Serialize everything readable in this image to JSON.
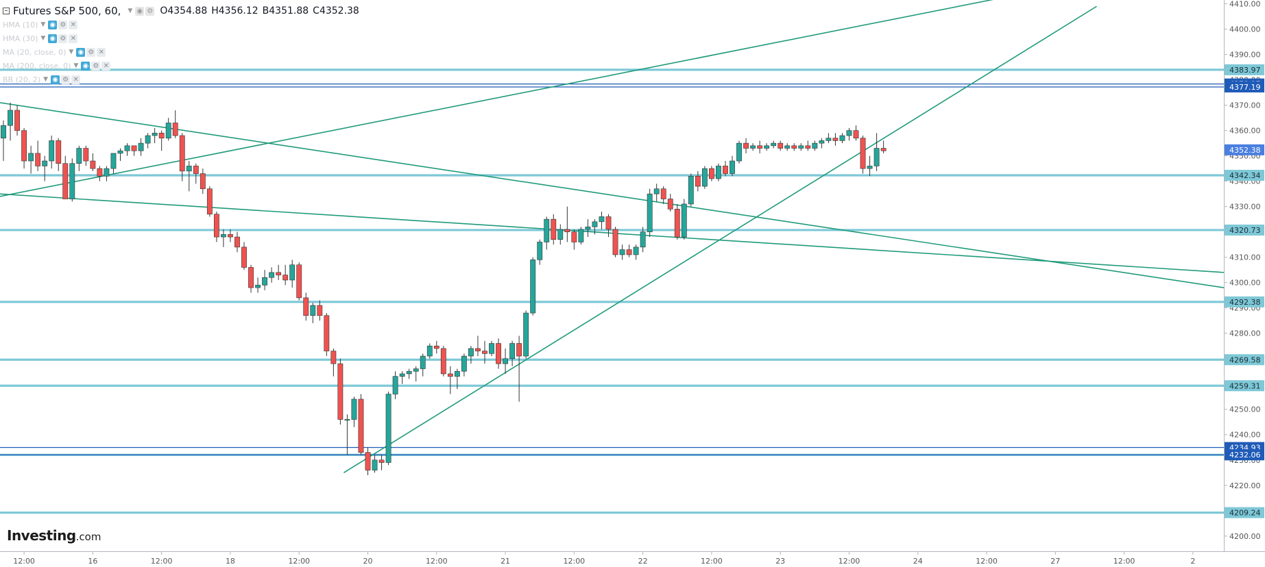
{
  "legend": {
    "title": "Futures S&P 500, 60,",
    "open": "O4354.88",
    "high": "H4356.12",
    "low": "B4351.88",
    "close": "C4352.38",
    "indicators": [
      {
        "label": "HMA (10)"
      },
      {
        "label": "HMA (30)"
      },
      {
        "label": "MA (20, close, 0)"
      },
      {
        "label": "MA (200, close, 0)"
      },
      {
        "label": "BB (20, 2)"
      }
    ]
  },
  "logo": {
    "brand": "Investing",
    "tld": ".com"
  },
  "colors": {
    "up": "#26a69a",
    "down": "#ef5350",
    "level_line": "#7ec8d7",
    "trend_line": "#1e9a7a",
    "dark_level": "#1f5bb8",
    "axis_text": "#555555",
    "current_price_bg": "#4a7fe0"
  },
  "chart_data": {
    "type": "candlestick",
    "title": "Futures S&P 500, 60,",
    "x_ticks": [
      "12:00",
      "16",
      "12:00",
      "18",
      "12:00",
      "20",
      "12:00",
      "21",
      "12:00",
      "22",
      "12:00",
      "23",
      "12:00",
      "24",
      "12:00",
      "27",
      "12:00",
      "2"
    ],
    "y_ticks": [
      4200,
      4210,
      4220,
      4230,
      4240,
      4250,
      4260,
      4270,
      4280,
      4290,
      4300,
      4310,
      4320,
      4330,
      4340,
      4350,
      4360,
      4370,
      4380,
      4390,
      4400,
      4410
    ],
    "ylim": [
      4194,
      4411.5
    ],
    "n_slots": 178,
    "last_price": 4352.38,
    "horizontal_levels": [
      {
        "price": 4383.97,
        "label": "4383.97"
      },
      {
        "price": 4342.34,
        "label": "4342.34"
      },
      {
        "price": 4320.73,
        "label": "4320.73"
      },
      {
        "price": 4292.38,
        "label": "4292.38"
      },
      {
        "price": 4269.58,
        "label": "4269.58"
      },
      {
        "price": 4259.31,
        "label": "4259.31"
      },
      {
        "price": 4232.02,
        "label": "4232.02"
      },
      {
        "price": 4209.24,
        "label": "4209.24"
      }
    ],
    "dark_levels": [
      {
        "price": 4378.37,
        "label": "4378.37"
      },
      {
        "price": 4377.19,
        "label": "4377.19"
      },
      {
        "price": 4234.93,
        "label": "4234.93"
      },
      {
        "price": 4232.06,
        "label": "4232.06"
      }
    ],
    "current_price_label": "4352.38",
    "trend_lines": [
      {
        "from": [
          -0.5,
          4334
        ],
        "to": [
          144.5,
          4412
        ]
      },
      {
        "from": [
          -0.5,
          4371
        ],
        "to": [
          177.5,
          4298
        ]
      },
      {
        "from": [
          -0.5,
          4335
        ],
        "to": [
          177.5,
          4304
        ]
      },
      {
        "from": [
          49.5,
          4225
        ],
        "to": [
          159,
          4409
        ]
      }
    ],
    "candles": [
      [
        0,
        4357,
        4364,
        4348,
        4362
      ],
      [
        1,
        4362,
        4371,
        4356,
        4368
      ],
      [
        2,
        4368,
        4370,
        4358,
        4360
      ],
      [
        3,
        4360,
        4361,
        4345,
        4348
      ],
      [
        4,
        4348,
        4354,
        4343,
        4351
      ],
      [
        5,
        4351,
        4356,
        4344,
        4346
      ],
      [
        6,
        4346,
        4350,
        4340,
        4348
      ],
      [
        7,
        4348,
        4358,
        4345,
        4356
      ],
      [
        8,
        4356,
        4357,
        4344,
        4347
      ],
      [
        9,
        4347,
        4350,
        4333,
        4333
      ],
      [
        10,
        4333,
        4349,
        4332,
        4347
      ],
      [
        11,
        4347,
        4354,
        4344,
        4353
      ],
      [
        12,
        4353,
        4354,
        4346,
        4348
      ],
      [
        13,
        4348,
        4351,
        4344,
        4345
      ],
      [
        14,
        4345,
        4346,
        4340,
        4342
      ],
      [
        15,
        4342,
        4346,
        4340,
        4345
      ],
      [
        16,
        4345,
        4351,
        4343,
        4351
      ],
      [
        17,
        4351,
        4353,
        4348,
        4352
      ],
      [
        18,
        4352,
        4355,
        4350,
        4354
      ],
      [
        19,
        4354,
        4354,
        4350,
        4352
      ],
      [
        20,
        4352,
        4357,
        4350,
        4355
      ],
      [
        21,
        4355,
        4359,
        4353,
        4358
      ],
      [
        22,
        4358,
        4361,
        4355,
        4359
      ],
      [
        23,
        4359,
        4360,
        4352,
        4357
      ],
      [
        24,
        4357,
        4365,
        4356,
        4363
      ],
      [
        25,
        4363,
        4368,
        4357,
        4358
      ],
      [
        26,
        4358,
        4359,
        4340,
        4344
      ],
      [
        27,
        4344,
        4348,
        4336,
        4346
      ],
      [
        28,
        4346,
        4347,
        4339,
        4343
      ],
      [
        29,
        4343,
        4345,
        4335,
        4337
      ],
      [
        30,
        4337,
        4338,
        4326,
        4327
      ],
      [
        31,
        4327,
        4328,
        4316,
        4318
      ],
      [
        32,
        4318,
        4321,
        4314,
        4319
      ],
      [
        33,
        4319,
        4321,
        4316,
        4318
      ],
      [
        34,
        4318,
        4320,
        4312,
        4314
      ],
      [
        35,
        4314,
        4316,
        4305,
        4306
      ],
      [
        36,
        4306,
        4307,
        4296,
        4298
      ],
      [
        37,
        4298,
        4302,
        4296,
        4299
      ],
      [
        38,
        4299,
        4305,
        4297,
        4302
      ],
      [
        39,
        4302,
        4306,
        4300,
        4304
      ],
      [
        40,
        4304,
        4307,
        4301,
        4303
      ],
      [
        41,
        4303,
        4307,
        4299,
        4301
      ],
      [
        42,
        4301,
        4309,
        4298,
        4307
      ],
      [
        43,
        4307,
        4308,
        4293,
        4294
      ],
      [
        44,
        4294,
        4296,
        4285,
        4287
      ],
      [
        45,
        4287,
        4292,
        4284,
        4291
      ],
      [
        46,
        4291,
        4293,
        4285,
        4287
      ],
      [
        47,
        4287,
        4288,
        4271,
        4273
      ],
      [
        48,
        4273,
        4274,
        4263,
        4268
      ],
      [
        49,
        4268,
        4270,
        4244,
        4246
      ],
      [
        50,
        4246,
        4248,
        4232,
        4246
      ],
      [
        51,
        4246,
        4255,
        4243,
        4254
      ],
      [
        52,
        4254,
        4256,
        4232,
        4233
      ],
      [
        53,
        4233,
        4235,
        4224,
        4226
      ],
      [
        54,
        4226,
        4232,
        4225,
        4230
      ],
      [
        55,
        4230,
        4232,
        4226,
        4229
      ],
      [
        56,
        4229,
        4257,
        4228,
        4256
      ],
      [
        57,
        4256,
        4265,
        4254,
        4263
      ],
      [
        58,
        4263,
        4265,
        4260,
        4264
      ],
      [
        59,
        4264,
        4266,
        4262,
        4265
      ],
      [
        60,
        4265,
        4267,
        4261,
        4266
      ],
      [
        61,
        4266,
        4272,
        4263,
        4271
      ],
      [
        62,
        4271,
        4276,
        4270,
        4275
      ],
      [
        63,
        4275,
        4277,
        4272,
        4274
      ],
      [
        64,
        4274,
        4275,
        4263,
        4264
      ],
      [
        65,
        4264,
        4267,
        4256,
        4263
      ],
      [
        66,
        4263,
        4266,
        4258,
        4265
      ],
      [
        67,
        4265,
        4272,
        4263,
        4271
      ],
      [
        68,
        4271,
        4275,
        4268,
        4274
      ],
      [
        69,
        4274,
        4279,
        4271,
        4273
      ],
      [
        70,
        4273,
        4277,
        4268,
        4272
      ],
      [
        71,
        4272,
        4277,
        4271,
        4276
      ],
      [
        72,
        4276,
        4278,
        4266,
        4268
      ],
      [
        73,
        4268,
        4274,
        4264,
        4270
      ],
      [
        74,
        4270,
        4277,
        4267,
        4276
      ],
      [
        75,
        4276,
        4279,
        4253,
        4271
      ],
      [
        76,
        4271,
        4289,
        4270,
        4288
      ],
      [
        77,
        4288,
        4310,
        4287,
        4309
      ],
      [
        78,
        4309,
        4317,
        4307,
        4316
      ],
      [
        79,
        4316,
        4326,
        4313,
        4325
      ],
      [
        80,
        4325,
        4327,
        4315,
        4317
      ],
      [
        81,
        4317,
        4323,
        4315,
        4321
      ],
      [
        82,
        4321,
        4330,
        4316,
        4320
      ],
      [
        83,
        4320,
        4321,
        4313,
        4316
      ],
      [
        84,
        4316,
        4322,
        4315,
        4321
      ],
      [
        85,
        4321,
        4325,
        4318,
        4322
      ],
      [
        86,
        4322,
        4325,
        4319,
        4324
      ],
      [
        87,
        4324,
        4328,
        4321,
        4326
      ],
      [
        88,
        4326,
        4327,
        4318,
        4321
      ],
      [
        89,
        4321,
        4322,
        4310,
        4311
      ],
      [
        90,
        4311,
        4315,
        4309,
        4313
      ],
      [
        91,
        4313,
        4315,
        4310,
        4311
      ],
      [
        92,
        4311,
        4315,
        4309,
        4314
      ],
      [
        93,
        4314,
        4322,
        4312,
        4320
      ],
      [
        94,
        4320,
        4337,
        4318,
        4335
      ],
      [
        95,
        4335,
        4339,
        4332,
        4337
      ],
      [
        96,
        4337,
        4338,
        4331,
        4333
      ],
      [
        97,
        4333,
        4335,
        4328,
        4329
      ],
      [
        98,
        4329,
        4331,
        4317,
        4318
      ],
      [
        99,
        4318,
        4333,
        4317,
        4331
      ],
      [
        100,
        4331,
        4343,
        4330,
        4342
      ],
      [
        101,
        4342,
        4344,
        4336,
        4338
      ],
      [
        102,
        4338,
        4346,
        4337,
        4345
      ],
      [
        103,
        4345,
        4346,
        4340,
        4341
      ],
      [
        104,
        4341,
        4347,
        4340,
        4346
      ],
      [
        105,
        4346,
        4348,
        4342,
        4343
      ],
      [
        106,
        4343,
        4350,
        4342,
        4348
      ],
      [
        107,
        4348,
        4356,
        4347,
        4355
      ],
      [
        108,
        4355,
        4357,
        4351,
        4353
      ],
      [
        109,
        4353,
        4355,
        4352,
        4354
      ],
      [
        110,
        4354,
        4356,
        4351,
        4353
      ],
      [
        111,
        4353,
        4355,
        4352,
        4354
      ],
      [
        112,
        4354,
        4356,
        4353,
        4355
      ],
      [
        113,
        4355,
        4356,
        4352,
        4353
      ],
      [
        114,
        4353,
        4355,
        4352,
        4354
      ],
      [
        115,
        4354,
        4355,
        4352,
        4353
      ],
      [
        116,
        4353,
        4355,
        4352,
        4354
      ],
      [
        117,
        4354,
        4356,
        4352,
        4353
      ],
      [
        118,
        4353,
        4356,
        4352,
        4355
      ],
      [
        119,
        4355,
        4357,
        4353,
        4356
      ],
      [
        120,
        4356,
        4359,
        4355,
        4357
      ],
      [
        121,
        4357,
        4359,
        4354,
        4356
      ],
      [
        122,
        4356,
        4359,
        4355,
        4358
      ],
      [
        123,
        4358,
        4361,
        4356,
        4360
      ],
      [
        124,
        4360,
        4362,
        4356,
        4357
      ],
      [
        125,
        4357,
        4358,
        4343,
        4345
      ],
      [
        126,
        4345,
        4350,
        4342,
        4346
      ],
      [
        127,
        4346,
        4359,
        4344,
        4353
      ],
      [
        128,
        4353,
        4356,
        4351,
        4352
      ]
    ]
  }
}
